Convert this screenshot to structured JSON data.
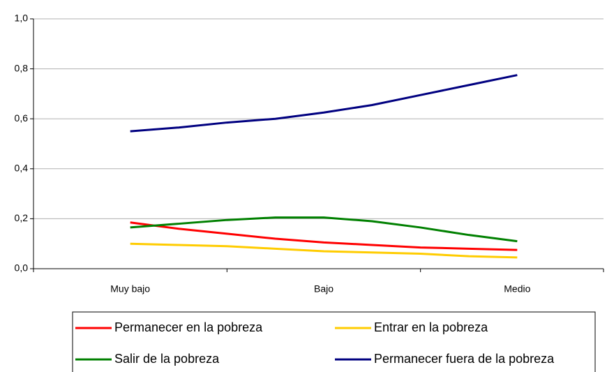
{
  "chart_data": {
    "type": "line",
    "categories": [
      "Muy bajo",
      null,
      null,
      null,
      "Bajo",
      null,
      null,
      null,
      "Medio"
    ],
    "series": [
      {
        "name": "Permanecer en la pobreza",
        "color": "#ff0000",
        "values": [
          0.185,
          0.16,
          0.14,
          0.12,
          0.105,
          0.095,
          0.085,
          0.08,
          0.075
        ]
      },
      {
        "name": "Entrar en la pobreza",
        "color": "#ffcc00",
        "values": [
          0.1,
          0.095,
          0.09,
          0.08,
          0.07,
          0.065,
          0.06,
          0.05,
          0.045
        ]
      },
      {
        "name": "Salir de la pobreza",
        "color": "#008000",
        "values": [
          0.165,
          0.18,
          0.195,
          0.205,
          0.205,
          0.19,
          0.165,
          0.135,
          0.11
        ]
      },
      {
        "name": "Permanecer fuera de la pobreza",
        "color": "#000080",
        "values": [
          0.55,
          0.565,
          0.585,
          0.6,
          0.625,
          0.655,
          0.695,
          0.735,
          0.775
        ]
      }
    ],
    "ylim": [
      0,
      1
    ],
    "yticks": [
      {
        "value": 0,
        "label": "0,0"
      },
      {
        "value": 0.2,
        "label": "0,2"
      },
      {
        "value": 0.4,
        "label": "0,4"
      },
      {
        "value": 0.6,
        "label": "0,6"
      },
      {
        "value": 0.8,
        "label": "0,8"
      },
      {
        "value": 1,
        "label": "1,0"
      }
    ],
    "grid": true,
    "legend": "bottom"
  }
}
